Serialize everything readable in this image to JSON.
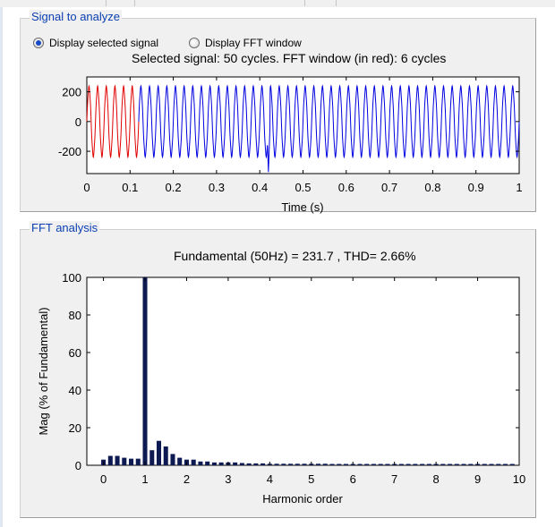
{
  "signal_panel": {
    "title": "Signal to analyze",
    "radio_selected_label": "Display selected signal",
    "radio_fft_label": "Display FFT window",
    "caption": "Selected signal: 50 cycles. FFT window (in red): 6 cycles"
  },
  "fft_panel": {
    "title": "FFT analysis",
    "caption": "Fundamental (50Hz) = 231.7 , THD= 2.66%"
  },
  "colors": {
    "window_color": "#e00000",
    "signal_color": "#0000e0",
    "bar_color": "#0d1a52",
    "title_color": "#0b3fb3"
  },
  "chart_data": [
    {
      "type": "line",
      "xlabel": "Time (s)",
      "ylabel": "",
      "xlim": [
        0,
        1
      ],
      "ylim": [
        -350,
        300
      ],
      "x_ticks": [
        "0",
        "0.1",
        "0.2",
        "0.3",
        "0.4",
        "0.5",
        "0.6",
        "0.7",
        "0.8",
        "0.9",
        "1"
      ],
      "y_ticks": [
        "200",
        "0",
        "-200"
      ],
      "series": [
        {
          "role": "fft-window",
          "frequency_hz": 50,
          "amplitude": 232,
          "x_start": 0,
          "x_end": 0.12,
          "color": "#e00000"
        },
        {
          "role": "signal",
          "frequency_hz": 50,
          "amplitude": 232,
          "x_start": 0.12,
          "x_end": 1,
          "color": "#0000e0"
        }
      ],
      "disturbance": {
        "time": 0.42,
        "min": -340
      }
    },
    {
      "type": "bar",
      "xlabel": "Harmonic order",
      "ylabel": "Mag (% of Fundamental)",
      "xlim": [
        -0.4,
        10
      ],
      "ylim": [
        0,
        100
      ],
      "x_ticks": [
        "0",
        "1",
        "2",
        "3",
        "4",
        "5",
        "6",
        "7",
        "8",
        "9",
        "10"
      ],
      "y_ticks": [
        "0",
        "20",
        "40",
        "60",
        "80",
        "100"
      ],
      "x": [
        0,
        0.1667,
        0.3333,
        0.5,
        0.6667,
        0.8333,
        1,
        1.1667,
        1.3333,
        1.5,
        1.6667,
        1.8333,
        2,
        2.1667,
        2.3333,
        2.5,
        2.6667,
        2.8333,
        3,
        3.1667,
        3.3333,
        3.5,
        3.6667,
        3.8333,
        4,
        4.1667,
        4.3333,
        4.5,
        4.6667,
        4.8333,
        5,
        5.1667,
        5.3333,
        5.5,
        5.6667,
        5.8333,
        6,
        6.1667,
        6.3333,
        6.5,
        6.6667,
        6.8333,
        7,
        7.1667,
        7.3333,
        7.5,
        7.6667,
        7.8333,
        8,
        8.1667,
        8.3333,
        8.5,
        8.6667,
        8.8333,
        9,
        9.1667,
        9.3333,
        9.5,
        9.6667,
        9.8333
      ],
      "values": [
        3,
        5,
        5,
        4,
        3.5,
        3.5,
        100,
        8,
        13,
        10,
        6,
        4,
        3,
        3,
        2,
        2,
        1.5,
        1.5,
        1.5,
        1.5,
        1.2,
        1,
        1,
        1,
        0.8,
        0.8,
        0.8,
        0.8,
        0.8,
        0.8,
        0.8,
        0.8,
        0.8,
        0.7,
        0.7,
        0.7,
        0.7,
        0.7,
        0.7,
        0.7,
        0.7,
        0.7,
        0.7,
        0.7,
        0.7,
        0.7,
        0.7,
        0.7,
        0.7,
        0.7,
        0.7,
        0.7,
        0.7,
        0.7,
        0.7,
        0.7,
        0.7,
        0.7,
        0.7,
        0.7
      ]
    }
  ]
}
